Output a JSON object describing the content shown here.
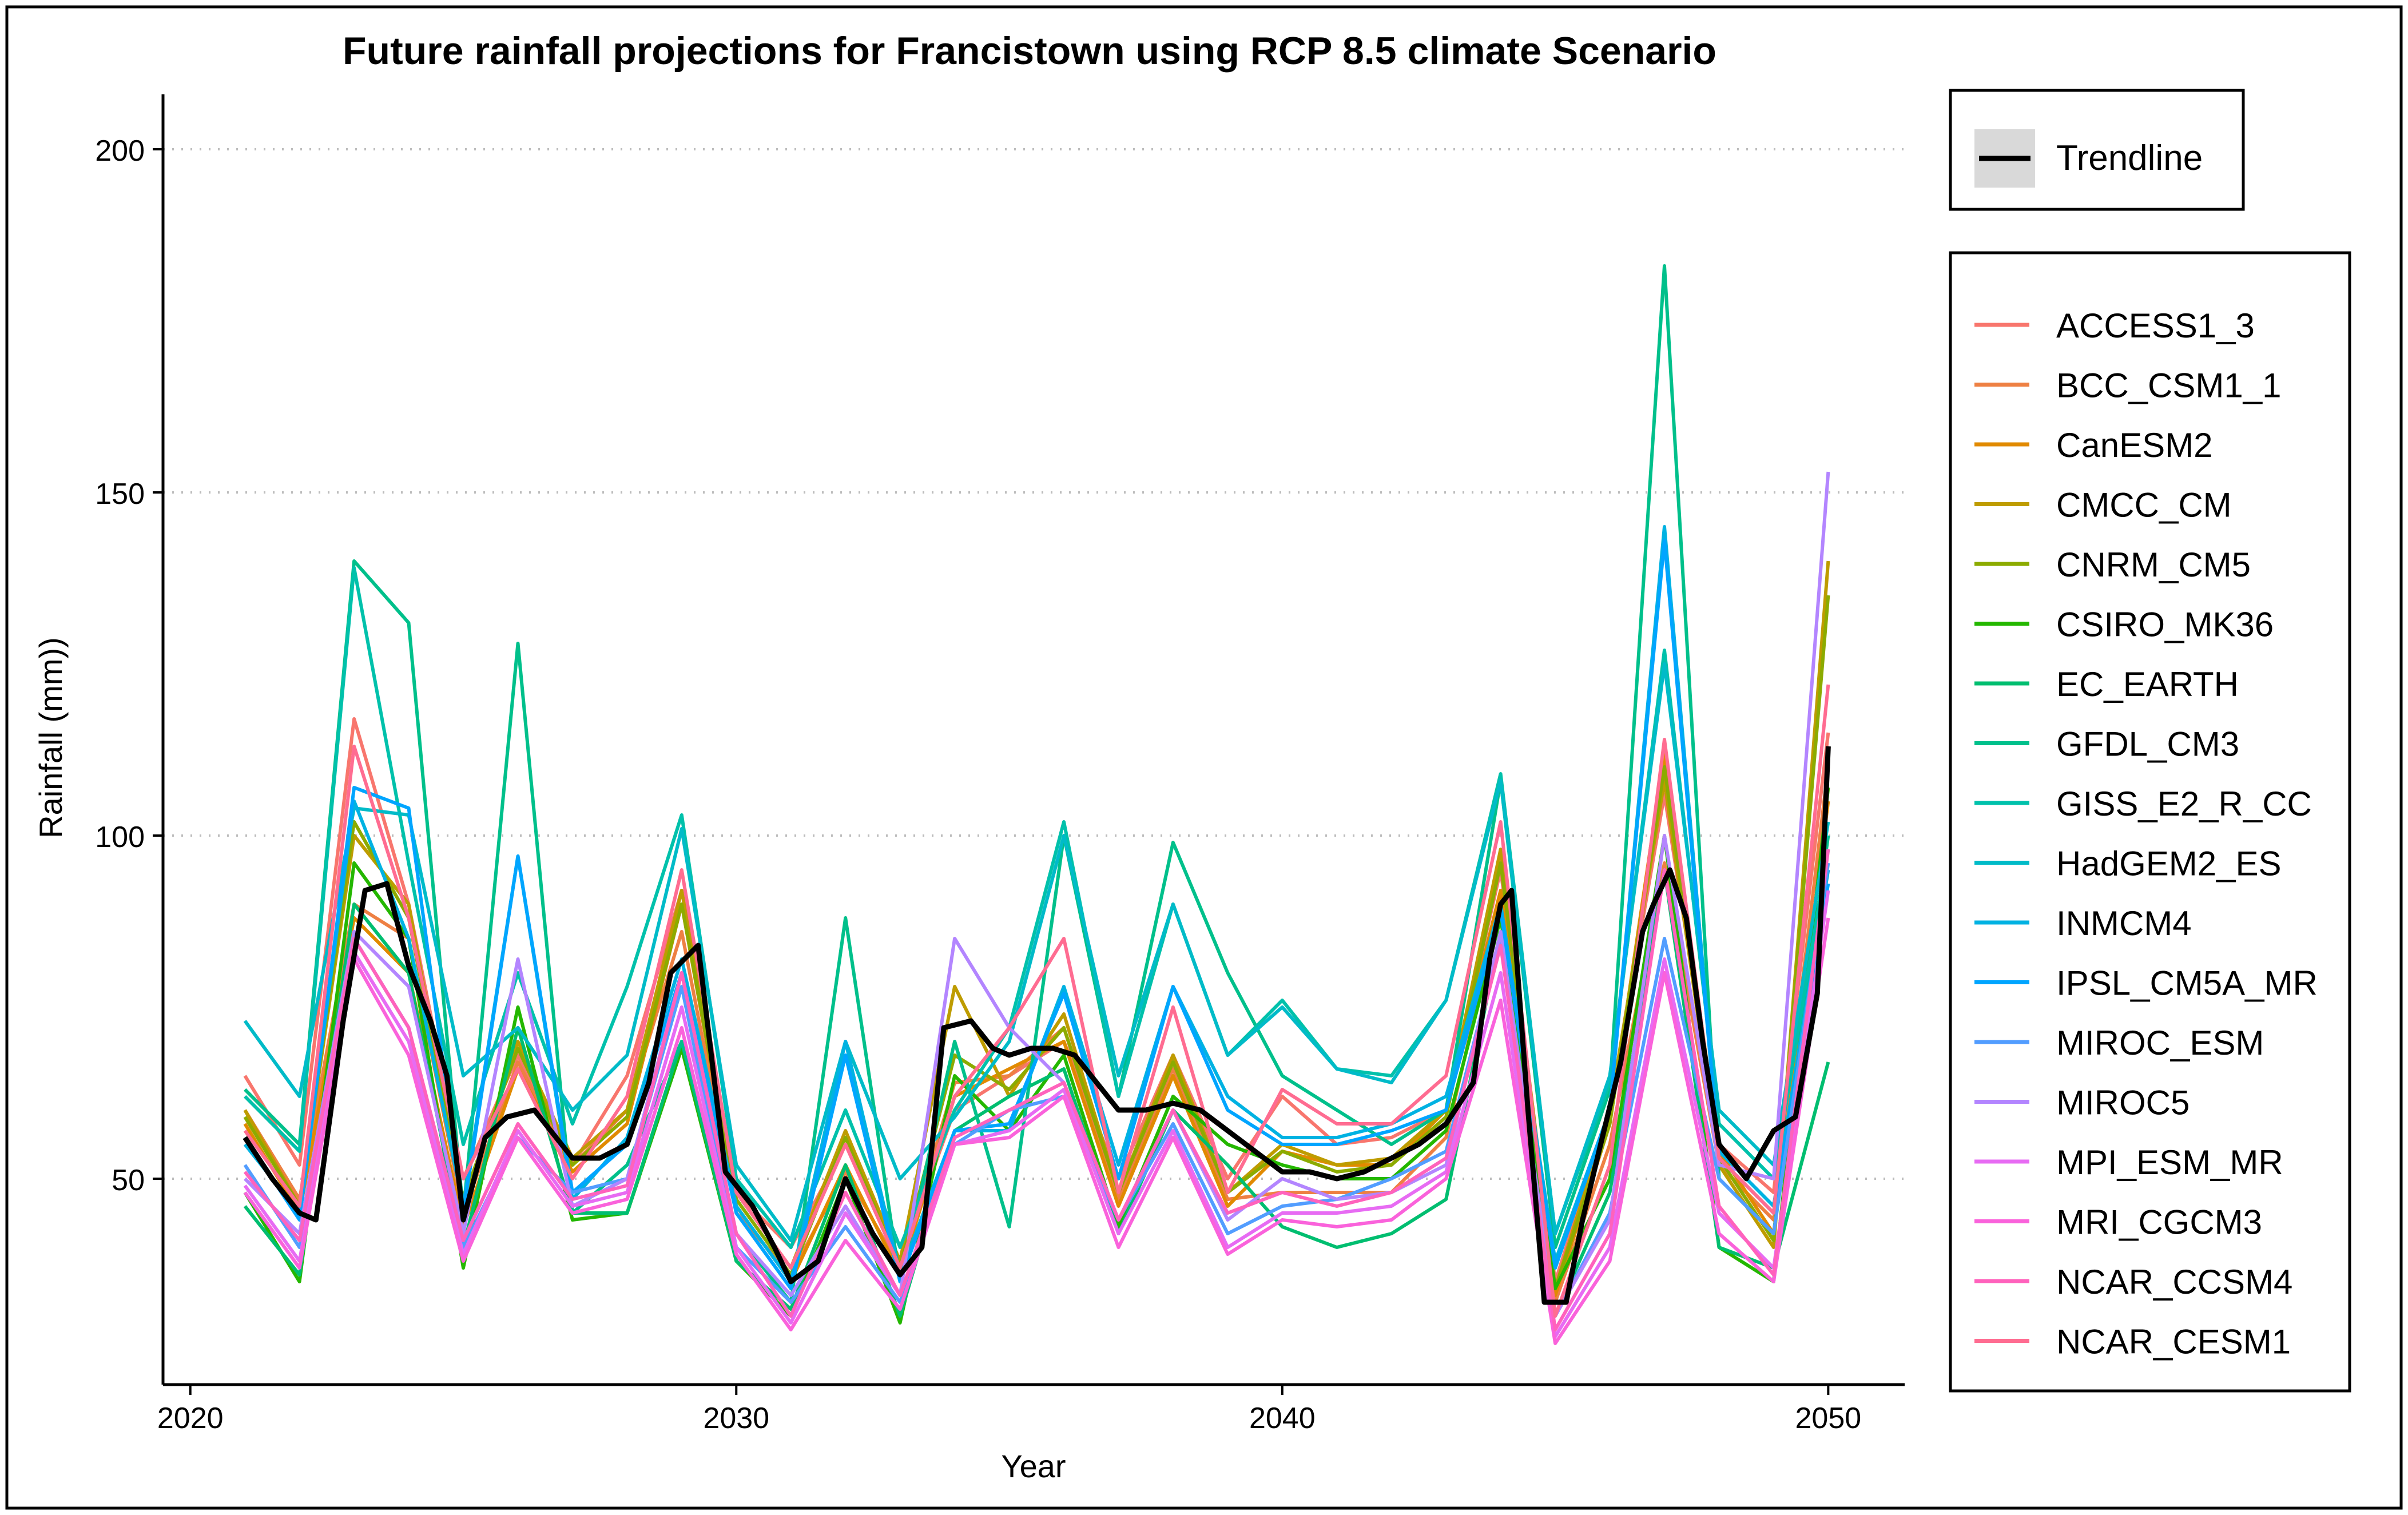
{
  "chart_data": {
    "type": "line",
    "title": "Future rainfall projections for Francistown using RCP 8.5 climate Scenario",
    "xlabel": "Year",
    "ylabel": "Rainfall (mm))",
    "xlim": [
      2019.5,
      2051.4
    ],
    "ylim": [
      20,
      208
    ],
    "xticks": [
      2020,
      2030,
      2040,
      2050
    ],
    "yticks": [
      50,
      100,
      150,
      200
    ],
    "grid": "horizontal-dotted",
    "legend_position": "right",
    "x": [
      2021,
      2022,
      2023,
      2024,
      2025,
      2026,
      2027,
      2028,
      2029,
      2030,
      2031,
      2032,
      2033,
      2034,
      2035,
      2036,
      2037,
      2038,
      2039,
      2040,
      2041,
      2042,
      2043,
      2044,
      2045,
      2046,
      2047,
      2048,
      2049,
      2050
    ],
    "trendline": {
      "name": "Trendline",
      "color": "#000000",
      "x": [
        2021,
        2021.5,
        2022,
        2022.3,
        2022.8,
        2023.2,
        2023.6,
        2024,
        2024.4,
        2024.7,
        2025,
        2025.4,
        2025.8,
        2026.3,
        2026.6,
        2027,
        2027.5,
        2028,
        2028.4,
        2028.8,
        2029.3,
        2029.8,
        2030.3,
        2030.7,
        2031,
        2031.5,
        2032,
        2032.5,
        2033,
        2033.4,
        2033.8,
        2034.3,
        2034.7,
        2035,
        2035.4,
        2035.8,
        2036.2,
        2036.6,
        2037,
        2037.5,
        2038,
        2038.5,
        2039,
        2039.5,
        2040,
        2040.5,
        2041,
        2041.5,
        2042,
        2042.5,
        2043,
        2043.5,
        2043.8,
        2044,
        2044.2,
        2044.5,
        2044.8,
        2045.2,
        2045.5,
        2045.8,
        2046.2,
        2046.6,
        2046.8,
        2047.1,
        2047.4,
        2047.7,
        2048,
        2048.5,
        2049,
        2049.4,
        2049.8,
        2050
      ],
      "values": [
        56,
        50,
        45,
        44,
        73,
        92,
        93,
        81,
        73,
        65,
        44,
        56,
        59,
        60,
        57,
        53,
        53,
        55,
        64,
        80,
        84,
        51,
        46,
        40,
        35,
        38,
        50,
        42,
        36,
        40,
        72,
        73,
        69,
        68,
        69,
        69,
        68,
        64,
        60,
        60,
        61,
        60,
        57,
        54,
        51,
        51,
        50,
        51,
        53,
        55,
        58,
        64,
        82,
        90,
        92,
        60,
        32,
        32,
        44,
        54,
        67,
        86,
        90,
        95,
        88,
        70,
        55,
        50,
        57,
        59,
        77,
        113
      ]
    },
    "series": [
      {
        "name": "ACCESS1_3",
        "color": "#F8766D",
        "values": [
          65,
          52,
          117,
          90,
          50,
          68,
          52,
          65,
          92,
          48,
          40,
          55,
          38,
          60,
          65,
          70,
          50,
          68,
          50,
          62,
          55,
          56,
          60,
          95,
          35,
          60,
          106,
          55,
          48,
          115
        ]
      },
      {
        "name": "BCC_CSM1_1",
        "color": "#EE8043",
        "values": [
          60,
          47,
          90,
          85,
          45,
          67,
          52,
          60,
          86,
          45,
          36,
          51,
          37,
          64,
          65,
          72,
          47,
          66,
          47,
          48,
          48,
          48,
          56,
          90,
          32,
          55,
          96,
          52,
          44,
          110
        ]
      },
      {
        "name": "CanESM2",
        "color": "#E18A00",
        "values": [
          58,
          45,
          88,
          80,
          43,
          66,
          51,
          58,
          90,
          46,
          35,
          52,
          36,
          62,
          66,
          70,
          46,
          65,
          46,
          54,
          52,
          52,
          60,
          92,
          33,
          58,
          112,
          54,
          42,
          105
        ]
      },
      {
        "name": "CMCC_CM",
        "color": "#BE9C00",
        "values": [
          60,
          46,
          100,
          90,
          46,
          70,
          53,
          60,
          92,
          48,
          37,
          57,
          38,
          78,
          62,
          74,
          48,
          68,
          48,
          55,
          52,
          53,
          60,
          98,
          34,
          60,
          108,
          52,
          40,
          140
        ]
      },
      {
        "name": "CNRM_CM5",
        "color": "#8CAB00",
        "values": [
          59,
          46,
          102,
          88,
          47,
          69,
          52,
          59,
          90,
          47,
          36,
          56,
          37,
          68,
          63,
          72,
          48,
          67,
          48,
          54,
          51,
          52,
          59,
          96,
          34,
          58,
          110,
          53,
          41,
          135
        ]
      },
      {
        "name": "CSIRO_MK36",
        "color": "#24B700",
        "values": [
          48,
          35,
          96,
          85,
          37,
          75,
          44,
          45,
          69,
          38,
          30,
          50,
          29,
          65,
          57,
          68,
          43,
          62,
          55,
          52,
          50,
          50,
          57,
          88,
          34,
          50,
          100,
          40,
          35,
          107
        ]
      },
      {
        "name": "EC_EARTH",
        "color": "#00BE70",
        "values": [
          46,
          36,
          90,
          80,
          40,
          72,
          45,
          45,
          70,
          38,
          31,
          52,
          30,
          57,
          62,
          66,
          42,
          60,
          52,
          43,
          40,
          42,
          47,
          86,
          30,
          48,
          95,
          40,
          37,
          67
        ]
      },
      {
        "name": "GFDL_CM3",
        "color": "#00C08B",
        "values": [
          63,
          55,
          140,
          131,
          45,
          128,
          45,
          52,
          70,
          42,
          32,
          88,
          35,
          70,
          43,
          100,
          62,
          99,
          80,
          65,
          60,
          55,
          60,
          108,
          40,
          63,
          183,
          50,
          42,
          100
        ]
      },
      {
        "name": "GISS_E2_R_CC",
        "color": "#00C1AB",
        "values": [
          62,
          54,
          139,
          96,
          55,
          80,
          58,
          78,
          103,
          50,
          40,
          60,
          40,
          60,
          72,
          102,
          62,
          90,
          68,
          76,
          66,
          65,
          76,
          109,
          42,
          64,
          127,
          58,
          50,
          98
        ]
      },
      {
        "name": "HadGEM2_ES",
        "color": "#00BBC8",
        "values": [
          73,
          62,
          104,
          103,
          65,
          72,
          60,
          68,
          101,
          52,
          41,
          70,
          50,
          59,
          70,
          100,
          65,
          90,
          68,
          75,
          66,
          64,
          76,
          108,
          42,
          65,
          125,
          60,
          52,
          102
        ]
      },
      {
        "name": "INMCM4",
        "color": "#00B2E2",
        "values": [
          55,
          45,
          105,
          85,
          46,
          97,
          47,
          56,
          82,
          46,
          35,
          70,
          36,
          57,
          57,
          78,
          52,
          78,
          62,
          56,
          56,
          58,
          62,
          90,
          38,
          60,
          145,
          54,
          46,
          95
        ]
      },
      {
        "name": "IPSL_CM5A_MR",
        "color": "#00A5FF",
        "values": [
          56,
          44,
          107,
          104,
          45,
          97,
          48,
          55,
          80,
          45,
          34,
          68,
          35,
          57,
          58,
          77,
          50,
          78,
          60,
          55,
          55,
          57,
          60,
          89,
          37,
          60,
          143,
          53,
          45,
          93
        ]
      },
      {
        "name": "MIROC_ESM",
        "color": "#529DFF",
        "values": [
          52,
          40,
          85,
          72,
          40,
          56,
          48,
          50,
          78,
          40,
          32,
          43,
          32,
          55,
          60,
          62,
          44,
          58,
          42,
          46,
          47,
          50,
          54,
          85,
          30,
          45,
          85,
          50,
          42,
          96
        ]
      },
      {
        "name": "MIROC5",
        "color": "#B385FF",
        "values": [
          50,
          42,
          86,
          78,
          42,
          82,
          46,
          50,
          80,
          42,
          33,
          46,
          33,
          85,
          72,
          64,
          44,
          60,
          44,
          50,
          47,
          48,
          52,
          86,
          30,
          44,
          100,
          52,
          50,
          153
        ]
      },
      {
        "name": "MPI_ESM_MR",
        "color": "#E76BF3",
        "values": [
          49,
          38,
          83,
          70,
          39,
          57,
          46,
          48,
          75,
          40,
          29,
          45,
          33,
          55,
          57,
          63,
          42,
          57,
          40,
          45,
          45,
          46,
          51,
          80,
          27,
          40,
          82,
          45,
          37,
          92
        ]
      },
      {
        "name": "MRI_CGCM3",
        "color": "#FA62DB",
        "values": [
          48,
          37,
          82,
          68,
          38,
          56,
          45,
          47,
          72,
          39,
          28,
          41,
          31,
          55,
          56,
          62,
          40,
          56,
          39,
          44,
          43,
          44,
          50,
          76,
          26,
          38,
          80,
          42,
          35,
          88
        ]
      },
      {
        "name": "NCAR_CCSM4",
        "color": "#FF62BC",
        "values": [
          51,
          41,
          85,
          72,
          41,
          58,
          47,
          49,
          80,
          42,
          30,
          48,
          33,
          56,
          60,
          64,
          44,
          60,
          45,
          48,
          46,
          48,
          53,
          84,
          28,
          42,
          95,
          46,
          36,
          98
        ]
      },
      {
        "name": "NCAR_CESM1",
        "color": "#FF6C91",
        "values": [
          57,
          46,
          113,
          88,
          50,
          66,
          50,
          62,
          95,
          48,
          37,
          55,
          37,
          62,
          72,
          85,
          48,
          75,
          48,
          63,
          58,
          58,
          65,
          102,
          30,
          52,
          114,
          53,
          45,
          122
        ]
      }
    ]
  }
}
